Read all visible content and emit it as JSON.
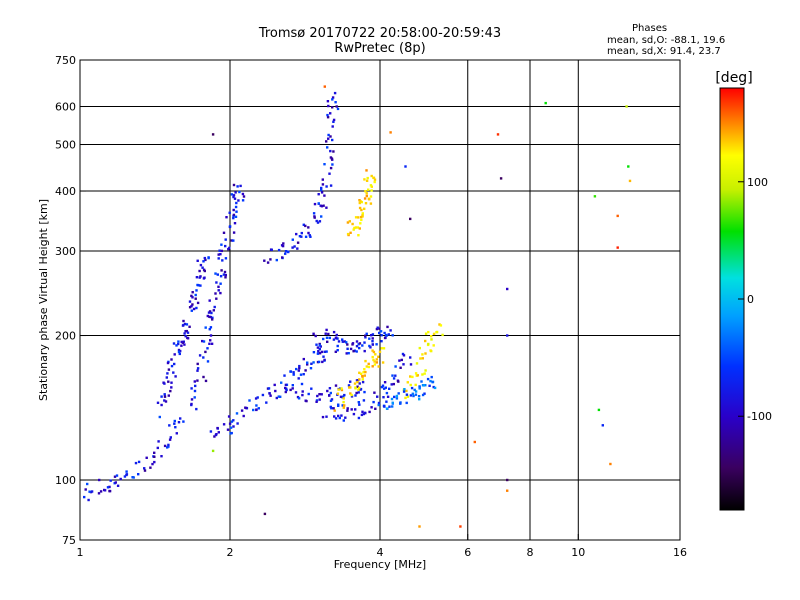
{
  "header": {
    "title": "Tromsø 20170722 20:58:00-20:59:43",
    "subtitle": "RwPretec (8p)"
  },
  "stats": {
    "heading": "Phases",
    "line_o": "mean, sd,O: -88.1, 19.6",
    "line_x": "mean, sd,X:  91.4, 23.7"
  },
  "chart_data": {
    "type": "scatter",
    "title": "Tromsø 20170722 20:58:00-20:59:43",
    "subtitle": "RwPretec (8p)",
    "xlabel": "Frequency [MHz]",
    "ylabel": "Stationary phase Virtual Height [km]",
    "x_scale": "log",
    "y_scale": "log",
    "xlim": [
      1,
      16
    ],
    "ylim": [
      75,
      750
    ],
    "x_ticks": [
      1,
      2,
      4,
      6,
      8,
      10,
      16
    ],
    "y_ticks": [
      75,
      100,
      200,
      300,
      400,
      500,
      600,
      750
    ],
    "x_grid": [
      2,
      4,
      6,
      8,
      10
    ],
    "y_grid": [
      100,
      200,
      300,
      400,
      500,
      600
    ],
    "colorbar": {
      "label": "[deg]",
      "min": -180,
      "max": 180,
      "ticks": [
        -100,
        0,
        100
      ]
    },
    "traces": [
      {
        "name": "",
        "x": [
          1.0,
          1.1,
          1.2,
          1.35,
          1.5,
          1.58
        ],
        "y": [
          93,
          96,
          100,
          108,
          120,
          132
        ],
        "phase": -110
      },
      {
        "name": "",
        "x": [
          1.45,
          1.5,
          1.55,
          1.6,
          1.65,
          1.7,
          1.75,
          1.78
        ],
        "y": [
          140,
          160,
          180,
          195,
          210,
          240,
          270,
          290
        ],
        "phase": -110
      },
      {
        "name": "",
        "x": [
          1.7,
          1.75,
          1.8,
          1.85,
          1.9,
          1.95,
          2.0,
          2.05,
          2.1
        ],
        "y": [
          140,
          170,
          200,
          230,
          260,
          300,
          340,
          380,
          410
        ],
        "phase": -110
      },
      {
        "name": "",
        "x": [
          1.85,
          2.0,
          2.2,
          2.4,
          2.6,
          2.8,
          3.0,
          3.1
        ],
        "y": [
          125,
          130,
          140,
          150,
          160,
          170,
          180,
          185
        ],
        "phase": -105
      },
      {
        "name": "",
        "x": [
          2.4,
          2.6,
          2.8,
          3.0,
          3.1,
          3.15,
          3.2,
          3.25
        ],
        "y": [
          290,
          300,
          320,
          350,
          400,
          470,
          560,
          640
        ],
        "phase": -110
      },
      {
        "name": "",
        "x": [
          2.6,
          2.9,
          3.2,
          3.5,
          3.7
        ],
        "y": [
          155,
          150,
          150,
          155,
          160
        ],
        "phase": -110
      },
      {
        "name": "",
        "x": [
          3.0,
          3.2,
          3.4,
          3.6,
          3.8,
          4.0,
          4.2
        ],
        "y": [
          200,
          195,
          190,
          190,
          195,
          200,
          205
        ],
        "phase": -110
      },
      {
        "name": "",
        "x": [
          3.1,
          3.4,
          3.7,
          4.0,
          4.3,
          4.6
        ],
        "y": [
          140,
          138,
          140,
          150,
          165,
          180
        ],
        "phase": -110
      },
      {
        "name": "",
        "x": [
          3.5,
          3.6,
          3.7,
          3.8,
          3.85
        ],
        "y": [
          330,
          350,
          370,
          400,
          430
        ],
        "phase": 110
      },
      {
        "name": "",
        "x": [
          3.3,
          3.5,
          3.7,
          3.9,
          4.0
        ],
        "y": [
          145,
          155,
          165,
          175,
          185
        ],
        "phase": 110
      },
      {
        "name": "",
        "x": [
          4.5,
          4.8,
          5.0,
          5.3
        ],
        "y": [
          150,
          170,
          190,
          210
        ],
        "phase": 95
      },
      {
        "name": "",
        "x": [
          4.0,
          4.3,
          4.6,
          4.9,
          5.1
        ],
        "y": [
          140,
          145,
          150,
          155,
          160
        ],
        "phase": -80
      }
    ],
    "points": [
      {
        "x": 1.85,
        "y": 525,
        "phase": -150
      },
      {
        "x": 1.85,
        "y": 115,
        "phase": 50
      },
      {
        "x": 2.35,
        "y": 85,
        "phase": -150
      },
      {
        "x": 3.1,
        "y": 660,
        "phase": 150
      },
      {
        "x": 5.8,
        "y": 80,
        "phase": 160
      },
      {
        "x": 6.9,
        "y": 525,
        "phase": 165
      },
      {
        "x": 7.0,
        "y": 425,
        "phase": -150
      },
      {
        "x": 7.2,
        "y": 100,
        "phase": -150
      },
      {
        "x": 7.2,
        "y": 95,
        "phase": 140
      },
      {
        "x": 8.6,
        "y": 610,
        "phase": 20
      },
      {
        "x": 10.8,
        "y": 390,
        "phase": 30
      },
      {
        "x": 12.0,
        "y": 355,
        "phase": 150
      },
      {
        "x": 12.0,
        "y": 305,
        "phase": 170
      },
      {
        "x": 12.5,
        "y": 600,
        "phase": 60
      },
      {
        "x": 12.6,
        "y": 450,
        "phase": 20
      },
      {
        "x": 12.7,
        "y": 420,
        "phase": 120
      },
      {
        "x": 11.6,
        "y": 108,
        "phase": 140
      },
      {
        "x": 11.2,
        "y": 130,
        "phase": -100
      },
      {
        "x": 11.0,
        "y": 140,
        "phase": 20
      },
      {
        "x": 7.2,
        "y": 250,
        "phase": -120
      },
      {
        "x": 7.2,
        "y": 200,
        "phase": -110
      },
      {
        "x": 6.2,
        "y": 120,
        "phase": 150
      },
      {
        "x": 4.8,
        "y": 80,
        "phase": 130
      },
      {
        "x": 4.2,
        "y": 530,
        "phase": 140
      },
      {
        "x": 4.5,
        "y": 450,
        "phase": -100
      },
      {
        "x": 4.6,
        "y": 350,
        "phase": -150
      }
    ]
  }
}
